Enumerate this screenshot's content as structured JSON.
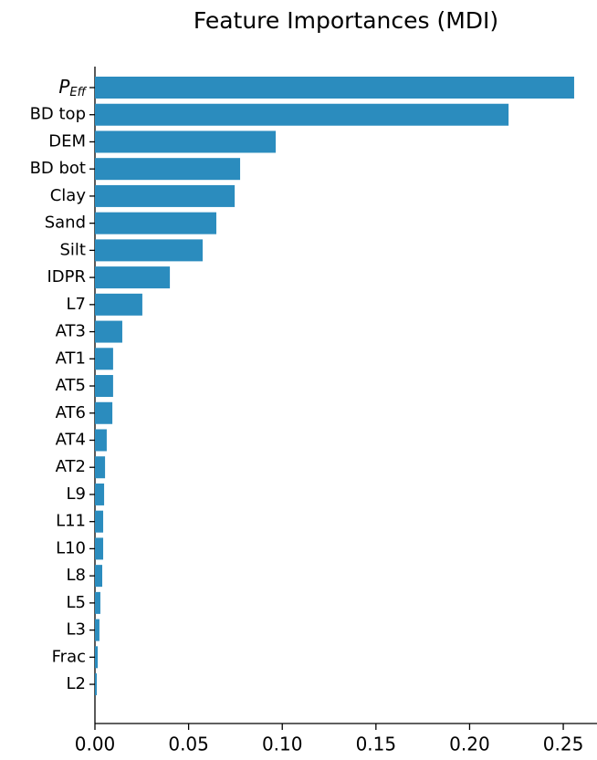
{
  "chart_data": {
    "type": "barh",
    "title": "Feature Importances (MDI)",
    "categories": [
      {
        "base": "P",
        "subscript": "Eff"
      },
      "BD top",
      "DEM",
      "BD bot",
      "Clay",
      "Sand",
      "Silt",
      "IDPR",
      "L7",
      "AT3",
      "AT1",
      "AT5",
      "AT6",
      "AT4",
      "AT2",
      "L9",
      "L11",
      "L10",
      "L8",
      "L5",
      "L3",
      "Frac",
      "L2"
    ],
    "values": [
      0.2558,
      0.2208,
      0.0965,
      0.0775,
      0.0746,
      0.0648,
      0.0575,
      0.04,
      0.0253,
      0.0146,
      0.0097,
      0.0097,
      0.0093,
      0.0063,
      0.0054,
      0.0049,
      0.0044,
      0.0044,
      0.0039,
      0.0029,
      0.0024,
      0.0015,
      0.001
    ],
    "color": "#2b8cbe",
    "xlim": [
      0,
      0.268
    ],
    "xticks": [
      {
        "value": 0,
        "label": "0.00"
      },
      {
        "value": 0.05,
        "label": "0.05"
      },
      {
        "value": 0.1,
        "label": "0.10"
      },
      {
        "value": 0.15,
        "label": "0.15"
      },
      {
        "value": 0.2,
        "label": "0.20"
      },
      {
        "value": 0.25,
        "label": "0.25"
      }
    ]
  }
}
